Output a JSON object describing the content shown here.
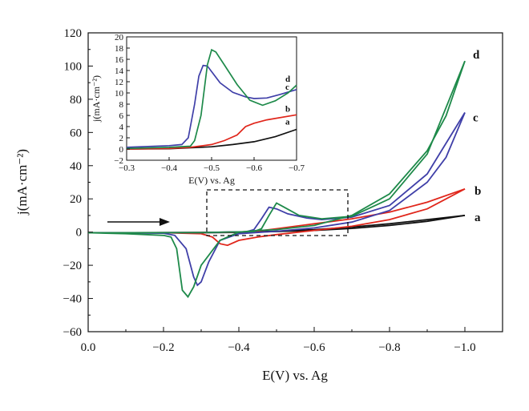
{
  "chart_data": [
    {
      "type": "line",
      "xlabel": "E(V) vs. Ag",
      "ylabel": "j(mA·cm⁻²)",
      "xlim": [
        0.0,
        -1.1
      ],
      "ylim": [
        -60,
        120
      ],
      "xticks": [
        "0.0",
        "−0.2",
        "−0.4",
        "−0.6",
        "−0.8",
        "−1.0"
      ],
      "xtick_values": [
        0.0,
        -0.2,
        -0.4,
        -0.6,
        -0.8,
        -1.0
      ],
      "yticks": [
        "−60",
        "−40",
        "−20",
        "0",
        "20",
        "40",
        "60",
        "80",
        "100",
        "120"
      ],
      "ytick_values": [
        -60,
        -40,
        -20,
        0,
        20,
        40,
        60,
        80,
        100,
        120
      ],
      "grid": false,
      "annotations": [
        "scan direction arrow (negative-going) near y = 5 from x = −0.06 to −0.23",
        "dashed box marks region x −0.31 to −0.69, y −1 to 25 shown enlarged in inset"
      ],
      "series": [
        {
          "name": "a",
          "color": "#111111",
          "forward": [
            [
              0.0,
              -0.4
            ],
            [
              -0.2,
              -0.3
            ],
            [
              -0.3,
              -0.2
            ],
            [
              -0.4,
              0.0
            ],
            [
              -0.5,
              0.5
            ],
            [
              -0.6,
              1.5
            ],
            [
              -0.7,
              3.0
            ],
            [
              -0.8,
              5.0
            ],
            [
              -0.9,
              7.5
            ],
            [
              -1.0,
              10.0
            ]
          ],
          "reverse": [
            [
              -1.0,
              10.0
            ],
            [
              -0.9,
              6.5
            ],
            [
              -0.8,
              4.0
            ],
            [
              -0.7,
              2.2
            ],
            [
              -0.6,
              1.0
            ],
            [
              -0.5,
              0.3
            ],
            [
              -0.4,
              -0.2
            ],
            [
              -0.3,
              -0.4
            ],
            [
              -0.2,
              -0.4
            ],
            [
              0.0,
              -0.4
            ]
          ]
        },
        {
          "name": "b",
          "color": "#e0261b",
          "forward": [
            [
              0.0,
              -0.4
            ],
            [
              -0.3,
              -0.3
            ],
            [
              -0.4,
              0.0
            ],
            [
              -0.45,
              0.6
            ],
            [
              -0.5,
              2.0
            ],
            [
              -0.55,
              3.5
            ],
            [
              -0.6,
              5.0
            ],
            [
              -0.7,
              8.0
            ],
            [
              -0.8,
              12.0
            ],
            [
              -0.9,
              18.0
            ],
            [
              -1.0,
              26.0
            ]
          ],
          "reverse": [
            [
              -1.0,
              26.0
            ],
            [
              -0.9,
              14.0
            ],
            [
              -0.8,
              7.5
            ],
            [
              -0.7,
              3.5
            ],
            [
              -0.6,
              1.0
            ],
            [
              -0.5,
              -1.5
            ],
            [
              -0.45,
              -3.0
            ],
            [
              -0.4,
              -5.0
            ],
            [
              -0.37,
              -8.0
            ],
            [
              -0.35,
              -7.0
            ],
            [
              -0.33,
              -3.0
            ],
            [
              -0.3,
              -1.0
            ],
            [
              -0.2,
              -0.4
            ],
            [
              0.0,
              -0.4
            ]
          ]
        },
        {
          "name": "c",
          "color": "#3f3fa8",
          "forward": [
            [
              0.0,
              -0.4
            ],
            [
              -0.3,
              -0.3
            ],
            [
              -0.42,
              0.2
            ],
            [
              -0.44,
              1.5
            ],
            [
              -0.46,
              8.0
            ],
            [
              -0.48,
              15.0
            ],
            [
              -0.5,
              14.0
            ],
            [
              -0.53,
              11.0
            ],
            [
              -0.58,
              8.5
            ],
            [
              -0.62,
              7.5
            ],
            [
              -0.7,
              9.0
            ],
            [
              -0.8,
              16.0
            ],
            [
              -0.9,
              35.0
            ],
            [
              -1.0,
              72.0
            ]
          ],
          "reverse": [
            [
              -1.0,
              72.0
            ],
            [
              -0.95,
              45.0
            ],
            [
              -0.9,
              30.0
            ],
            [
              -0.8,
              13.0
            ],
            [
              -0.7,
              6.0
            ],
            [
              -0.6,
              2.5
            ],
            [
              -0.5,
              0.5
            ],
            [
              -0.4,
              -1.0
            ],
            [
              -0.35,
              -5.0
            ],
            [
              -0.32,
              -18.0
            ],
            [
              -0.3,
              -30.0
            ],
            [
              -0.29,
              -32.0
            ],
            [
              -0.28,
              -27.0
            ],
            [
              -0.26,
              -10.0
            ],
            [
              -0.23,
              -2.0
            ],
            [
              -0.2,
              -0.7
            ],
            [
              0.0,
              -0.4
            ]
          ]
        },
        {
          "name": "d",
          "color": "#1e8a4a",
          "forward": [
            [
              0.0,
              -0.4
            ],
            [
              -0.3,
              -0.3
            ],
            [
              -0.44,
              0.3
            ],
            [
              -0.46,
              2.0
            ],
            [
              -0.48,
              10.0
            ],
            [
              -0.5,
              17.5
            ],
            [
              -0.52,
              15.0
            ],
            [
              -0.56,
              10.0
            ],
            [
              -0.62,
              8.0
            ],
            [
              -0.7,
              9.5
            ],
            [
              -0.8,
              20.0
            ],
            [
              -0.9,
              47.0
            ],
            [
              -1.0,
              103.0
            ]
          ],
          "reverse": [
            [
              -1.0,
              103.0
            ],
            [
              -0.95,
              70.0
            ],
            [
              -0.9,
              49.0
            ],
            [
              -0.8,
              23.0
            ],
            [
              -0.7,
              10.0
            ],
            [
              -0.6,
              4.0
            ],
            [
              -0.5,
              1.5
            ],
            [
              -0.45,
              1.0
            ],
            [
              -0.4,
              0.0
            ],
            [
              -0.35,
              -5.0
            ],
            [
              -0.3,
              -20.0
            ],
            [
              -0.28,
              -33.0
            ],
            [
              -0.265,
              -39.0
            ],
            [
              -0.25,
              -35.0
            ],
            [
              -0.235,
              -10.0
            ],
            [
              -0.22,
              -3.0
            ],
            [
              -0.2,
              -2.0
            ],
            [
              -0.1,
              -1.0
            ],
            [
              0.0,
              -0.4
            ]
          ]
        }
      ]
    },
    {
      "type": "line",
      "xlabel": "E(V) vs. Ag",
      "ylabel": "j(mA·cm⁻²)",
      "xlim": [
        -0.3,
        -0.7
      ],
      "ylim": [
        -2,
        20
      ],
      "xticks": [
        "−0.3",
        "−0.4",
        "−0.5",
        "−0.6",
        "−0.7"
      ],
      "xtick_values": [
        -0.3,
        -0.4,
        -0.5,
        -0.6,
        -0.7
      ],
      "yticks": [
        "−2",
        "0",
        "2",
        "4",
        "6",
        "8",
        "10",
        "12",
        "14",
        "16",
        "18",
        "20"
      ],
      "ytick_values": [
        -2,
        0,
        2,
        4,
        6,
        8,
        10,
        12,
        14,
        16,
        18,
        20
      ],
      "grid": false,
      "series": [
        {
          "name": "a",
          "color": "#111111",
          "points": [
            [
              -0.3,
              0.0
            ],
            [
              -0.4,
              0.05
            ],
            [
              -0.5,
              0.4
            ],
            [
              -0.55,
              0.8
            ],
            [
              -0.6,
              1.3
            ],
            [
              -0.65,
              2.2
            ],
            [
              -0.7,
              3.5
            ]
          ]
        },
        {
          "name": "b",
          "color": "#e0261b",
          "points": [
            [
              -0.3,
              0.0
            ],
            [
              -0.4,
              0.1
            ],
            [
              -0.45,
              0.3
            ],
            [
              -0.5,
              0.8
            ],
            [
              -0.53,
              1.5
            ],
            [
              -0.56,
              2.5
            ],
            [
              -0.58,
              4.0
            ],
            [
              -0.6,
              4.6
            ],
            [
              -0.63,
              5.2
            ],
            [
              -0.7,
              6.1
            ]
          ]
        },
        {
          "name": "c",
          "color": "#3f3fa8",
          "points": [
            [
              -0.3,
              0.3
            ],
            [
              -0.4,
              0.6
            ],
            [
              -0.43,
              0.8
            ],
            [
              -0.445,
              2.0
            ],
            [
              -0.46,
              8.0
            ],
            [
              -0.47,
              13.0
            ],
            [
              -0.48,
              14.9
            ],
            [
              -0.49,
              14.8
            ],
            [
              -0.5,
              13.8
            ],
            [
              -0.52,
              11.8
            ],
            [
              -0.55,
              10.1
            ],
            [
              -0.58,
              9.3
            ],
            [
              -0.6,
              9.0
            ],
            [
              -0.63,
              9.1
            ],
            [
              -0.66,
              9.7
            ],
            [
              -0.7,
              10.6
            ]
          ]
        },
        {
          "name": "d",
          "color": "#1e8a4a",
          "points": [
            [
              -0.3,
              0.1
            ],
            [
              -0.4,
              0.3
            ],
            [
              -0.45,
              0.5
            ],
            [
              -0.46,
              1.5
            ],
            [
              -0.475,
              6.0
            ],
            [
              -0.49,
              15.0
            ],
            [
              -0.5,
              17.7
            ],
            [
              -0.51,
              17.3
            ],
            [
              -0.53,
              15.0
            ],
            [
              -0.56,
              11.5
            ],
            [
              -0.59,
              8.7
            ],
            [
              -0.62,
              7.8
            ],
            [
              -0.65,
              8.6
            ],
            [
              -0.68,
              10.0
            ],
            [
              -0.7,
              11.4
            ]
          ]
        }
      ]
    }
  ]
}
